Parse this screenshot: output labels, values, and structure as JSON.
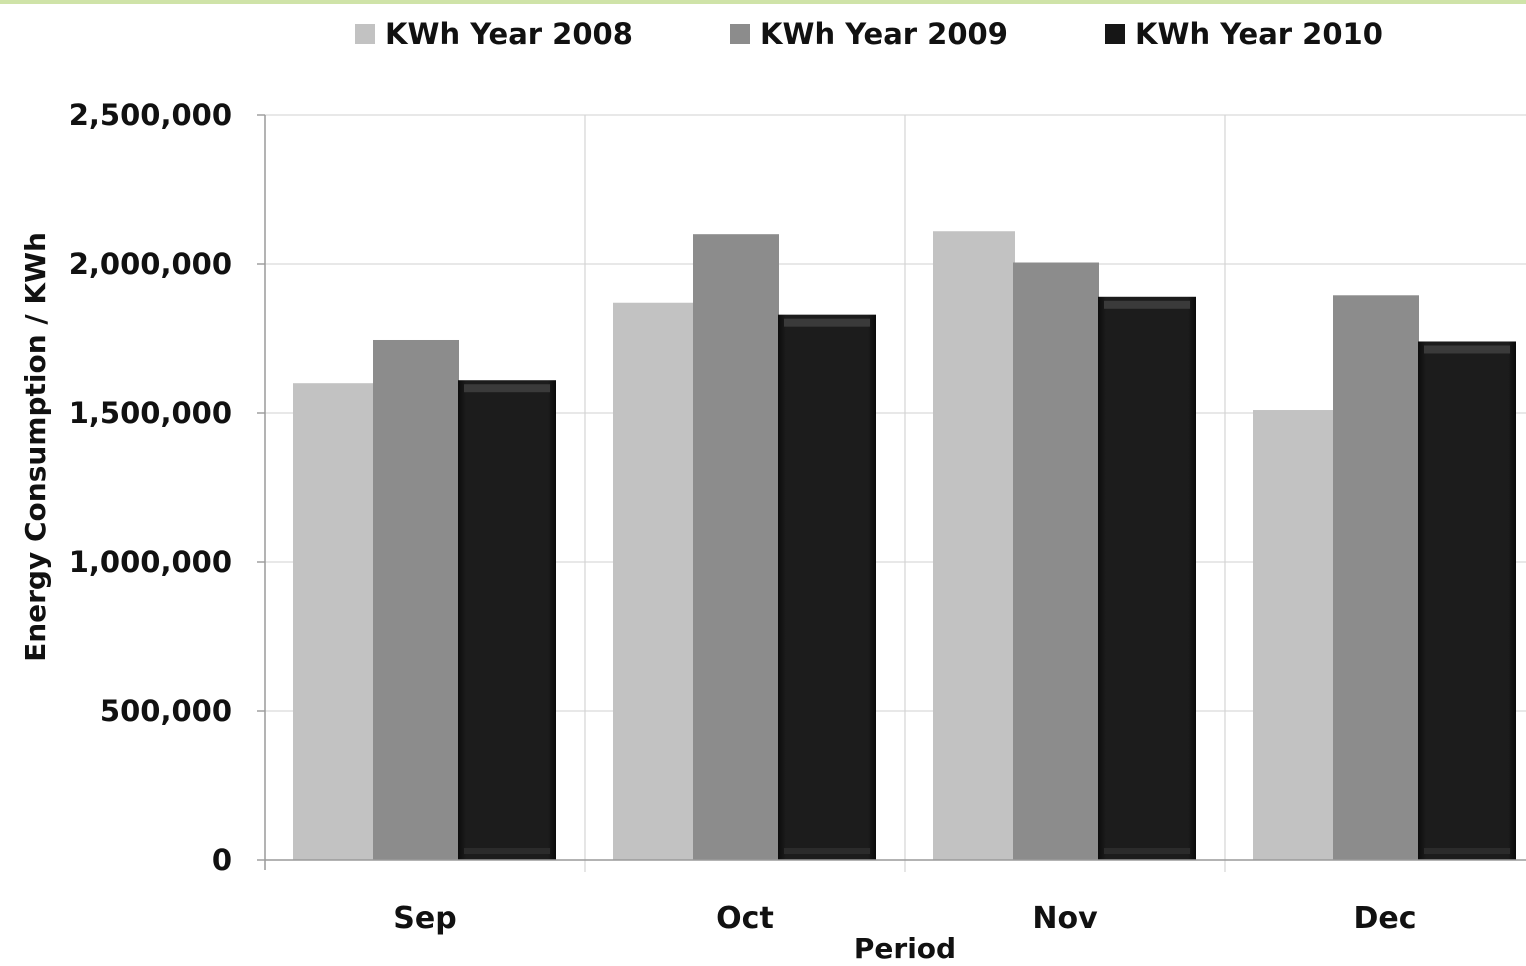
{
  "chart_data": {
    "type": "bar",
    "categories": [
      "Sep",
      "Oct",
      "Nov",
      "Dec"
    ],
    "series": [
      {
        "name": "KWh Year 2008",
        "values": [
          1600000,
          1870000,
          2110000,
          1510000
        ],
        "color": "#c2c2c2"
      },
      {
        "name": "KWh Year 2009",
        "values": [
          1745000,
          2100000,
          2005000,
          1895000
        ],
        "color": "#8c8c8c"
      },
      {
        "name": "KWh Year 2010",
        "values": [
          1610000,
          1830000,
          1890000,
          1740000
        ],
        "color": "#161616"
      }
    ],
    "xlabel": "Period",
    "ylabel": "Energy Consumption / KWh",
    "ylim": [
      0,
      2500000
    ],
    "yticks": [
      0,
      500000,
      1000000,
      1500000,
      2000000,
      2500000
    ],
    "ytick_labels": [
      "0",
      "500,000",
      "1,000,000",
      "1,500,000",
      "2,000,000",
      "2,500,000"
    ],
    "grid": true,
    "legend_position": "top"
  }
}
